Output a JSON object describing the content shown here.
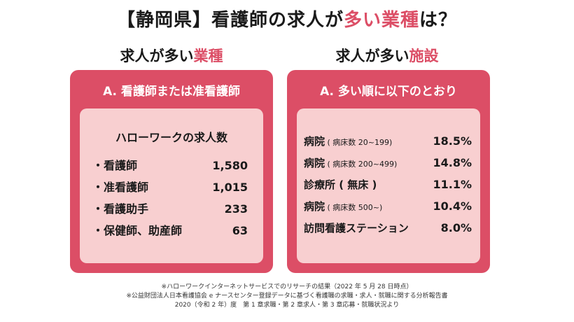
{
  "title": {
    "part1": "【静岡県】看護師の求人が",
    "accent": "多い業種",
    "part2": "は？"
  },
  "left_column": {
    "heading_plain": "求人が多い",
    "heading_accent": "業種",
    "card_header": "A. 看護師または准看護師",
    "inner_title": "ハローワークの求人数",
    "items": [
      {
        "label": "・看護師",
        "value": "1,580"
      },
      {
        "label": "・准看護師",
        "value": "1,015"
      },
      {
        "label": "・看護助手",
        "value": "233"
      },
      {
        "label": "・保健師、助産師",
        "value": "63"
      }
    ]
  },
  "right_column": {
    "heading_plain": "求人が多い",
    "heading_accent": "施設",
    "card_header": "A. 多い順に以下のとおり",
    "items": [
      {
        "name": "病院",
        "sub": " ( 病床数 20~199)",
        "pct": "18.5%"
      },
      {
        "name": "病院",
        "sub": " ( 病床数 200~499)",
        "pct": "14.8%"
      },
      {
        "name": "診療所 ( 無床 )",
        "sub": "",
        "pct": "11.1%"
      },
      {
        "name": "病院",
        "sub": " ( 病床数 500~)",
        "pct": "10.4%"
      },
      {
        "name": "訪問看護ステーション",
        "sub": "",
        "pct": "8.0%"
      }
    ]
  },
  "footnotes": [
    "※ハローワークインターネットサービスでのリサーチの結果（2022 年 5 月 28 日時点）",
    "※公益財団法人日本看護協会 e ナースセンター登録データに基づく看護職の求職・求人・就職に関する分析報告書",
    "2020（令和 2 年）度　第 1 章求職・第 2 章求人・第 3 章応募・就職状況より"
  ],
  "colors": {
    "accent": "#dc4e66",
    "card_inner": "#f8cfd0"
  }
}
